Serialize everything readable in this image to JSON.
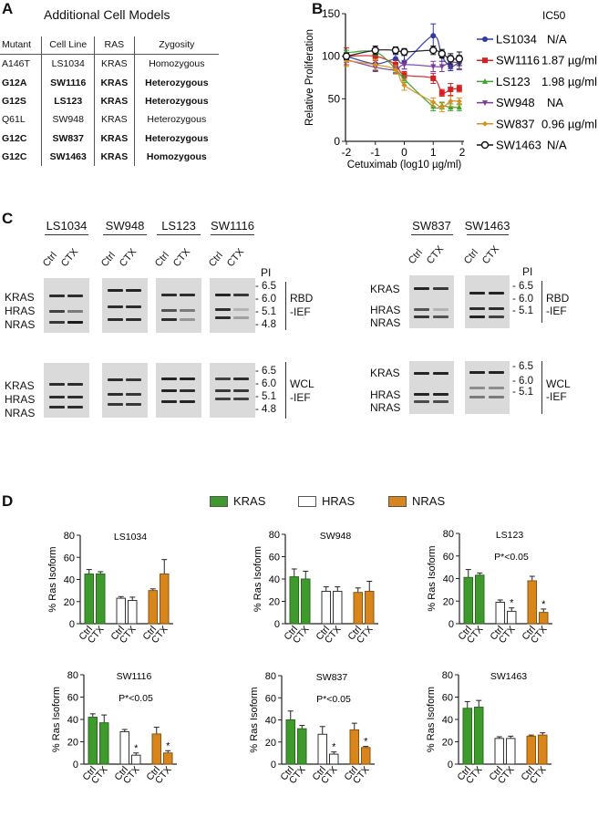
{
  "panels": {
    "a": {
      "letter": "A",
      "title": "Additional Cell Models",
      "headers": [
        "Mutant",
        "Cell Line",
        "RAS",
        "Zygosity"
      ],
      "rows": [
        {
          "mutant": "A146T",
          "cell_line": "LS1034",
          "ras": "KRAS",
          "zygosity": "Homozygous",
          "bold": false
        },
        {
          "mutant": "G12A",
          "cell_line": "SW1116",
          "ras": "KRAS",
          "zygosity": "Heterozygous",
          "bold": true
        },
        {
          "mutant": "G12S",
          "cell_line": "LS123",
          "ras": "KRAS",
          "zygosity": "Heterozygous",
          "bold": true
        },
        {
          "mutant": "Q61L",
          "cell_line": "SW948",
          "ras": "KRAS",
          "zygosity": "Heterozygous",
          "bold": false
        },
        {
          "mutant": "G12C",
          "cell_line": "SW837",
          "ras": "KRAS",
          "zygosity": "Heterozygous",
          "bold": true
        },
        {
          "mutant": "G12C",
          "cell_line": "SW1463",
          "ras": "KRAS",
          "zygosity": "Homozygous",
          "bold": true
        }
      ]
    },
    "b": {
      "letter": "B",
      "legend_title": "IC50"
    },
    "c": {
      "letter": "C",
      "lane_labels": [
        "Ctrl",
        "CTX"
      ],
      "row_labels": [
        "KRAS",
        "HRAS",
        "NRAS"
      ],
      "pi_title": "PI",
      "pi_left": [
        "6.5",
        "6.0",
        "5.1",
        "4.8"
      ],
      "pi_right_top": [
        "6.5",
        "6.0",
        "5.1"
      ],
      "pi_right_bottom": [
        "6.5",
        "6.0",
        "5.1"
      ],
      "rbd_label": [
        "RBD",
        "-IEF"
      ],
      "wcl_label": [
        "WCL",
        "-IEF"
      ],
      "left_cell_lines": [
        "LS1034",
        "SW948",
        "LS123",
        "SW1116"
      ],
      "right_cell_lines": [
        "SW837",
        "SW1463"
      ]
    },
    "d": {
      "letter": "D",
      "legend": [
        {
          "label": "KRAS",
          "color": "#3f9a2e"
        },
        {
          "label": "HRAS",
          "color": "#ffffff"
        },
        {
          "label": "NRAS",
          "color": "#d8861c"
        }
      ]
    }
  },
  "chart_data": [
    {
      "type": "line",
      "title": "",
      "xlabel": "Cetuximab (log10 µg/ml)",
      "ylabel": "Relative Proliferation",
      "xlim": [
        -2,
        2
      ],
      "ylim": [
        0,
        150
      ],
      "xticks": [
        -2,
        -1,
        0,
        1,
        2
      ],
      "yticks": [
        0,
        50,
        100,
        150
      ],
      "x": [
        -2,
        -1,
        -0.3,
        0,
        1,
        1.3,
        1.6,
        1.9
      ],
      "legend_title": "IC50",
      "series": [
        {
          "name": "LS1034",
          "ic50": "N/A",
          "color": "#2e3a9e",
          "marker": "circle",
          "values": [
            100,
            91,
            97,
            93,
            124,
            100,
            88,
            93
          ],
          "errors": [
            3,
            8,
            5,
            8,
            14,
            6,
            5,
            8
          ]
        },
        {
          "name": "SW1116",
          "ic50": "1.87 µg/ml",
          "color": "#d42020",
          "marker": "square",
          "values": [
            100,
            100,
            90,
            78,
            74,
            57,
            61,
            62
          ],
          "errors": [
            10,
            5,
            5,
            4,
            6,
            4,
            7,
            4
          ]
        },
        {
          "name": "LS123",
          "ic50": "1.98 µg/ml",
          "color": "#3fa02e",
          "marker": "triangle-up",
          "values": [
            104,
            105,
            85,
            73,
            41,
            42,
            40,
            40
          ],
          "errors": [
            3,
            4,
            4,
            4,
            5,
            4,
            4,
            4
          ]
        },
        {
          "name": "SW948",
          "ic50": "NA",
          "color": "#7a3a9e",
          "marker": "triangle-down",
          "values": [
            96,
            87,
            84,
            90,
            88,
            88,
            93,
            92
          ],
          "errors": [
            3,
            5,
            4,
            5,
            6,
            6,
            8,
            8
          ]
        },
        {
          "name": "SW837",
          "ic50": "0.96 µg/ml",
          "color": "#d8901c",
          "marker": "diamond",
          "values": [
            95,
            90,
            84,
            66,
            46,
            40,
            47,
            47
          ],
          "errors": [
            7,
            6,
            5,
            6,
            5,
            5,
            6,
            4
          ]
        },
        {
          "name": "SW1463",
          "ic50": "N/A",
          "color": "#111111",
          "marker": "open-circle",
          "values": [
            100,
            107,
            107,
            105,
            107,
            103,
            97,
            97
          ],
          "errors": [
            4,
            5,
            4,
            4,
            5,
            5,
            6,
            8
          ]
        }
      ]
    },
    {
      "type": "bar",
      "title": "LS1034",
      "annotation": "",
      "ylabel": "% Ras Isoform",
      "ylim": [
        0,
        80
      ],
      "yticks": [
        0,
        20,
        40,
        60,
        80
      ],
      "categories": [
        "Ctrl",
        "CTX",
        "Ctrl",
        "CTX",
        "Ctrl",
        "CTX"
      ],
      "series": [
        {
          "name": "KRAS",
          "values": [
            45,
            45
          ],
          "errors": [
            4,
            2
          ]
        },
        {
          "name": "HRAS",
          "values": [
            23,
            21
          ],
          "errors": [
            1.5,
            3
          ]
        },
        {
          "name": "NRAS",
          "values": [
            30,
            45
          ],
          "errors": [
            1.5,
            13
          ]
        }
      ],
      "significant": []
    },
    {
      "type": "bar",
      "title": "SW948",
      "annotation": "",
      "ylabel": "% Ras Isoform",
      "ylim": [
        0,
        80
      ],
      "yticks": [
        0,
        20,
        40,
        60,
        80
      ],
      "categories": [
        "Ctrl",
        "CTX",
        "Ctrl",
        "CTX",
        "Ctrl",
        "CTX"
      ],
      "series": [
        {
          "name": "KRAS",
          "values": [
            42,
            40
          ],
          "errors": [
            7,
            7
          ]
        },
        {
          "name": "HRAS",
          "values": [
            29,
            29
          ],
          "errors": [
            4,
            4
          ]
        },
        {
          "name": "NRAS",
          "values": [
            28,
            29
          ],
          "errors": [
            4,
            9
          ]
        }
      ],
      "significant": []
    },
    {
      "type": "bar",
      "title": "LS123",
      "annotation": "P*<0.05",
      "ylabel": "% Ras Isoform",
      "ylim": [
        0,
        80
      ],
      "yticks": [
        0,
        20,
        40,
        60,
        80
      ],
      "categories": [
        "Ctrl",
        "CTX",
        "Ctrl",
        "CTX",
        "Ctrl",
        "CTX"
      ],
      "series": [
        {
          "name": "KRAS",
          "values": [
            41,
            43
          ],
          "errors": [
            7,
            2
          ]
        },
        {
          "name": "HRAS",
          "values": [
            19,
            11
          ],
          "errors": [
            2,
            3
          ]
        },
        {
          "name": "NRAS",
          "values": [
            38,
            10
          ],
          "errors": [
            4,
            3
          ]
        }
      ],
      "significant": [
        "HRAS CTX",
        "NRAS CTX"
      ]
    },
    {
      "type": "bar",
      "title": "SW1116",
      "annotation": "P*<0.05",
      "ylabel": "% Ras Isoform",
      "ylim": [
        0,
        80
      ],
      "yticks": [
        0,
        20,
        40,
        60,
        80
      ],
      "categories": [
        "Ctrl",
        "CTX",
        "Ctrl",
        "CTX",
        "Ctrl",
        "CTX"
      ],
      "series": [
        {
          "name": "KRAS",
          "values": [
            42,
            37
          ],
          "errors": [
            3,
            7
          ]
        },
        {
          "name": "HRAS",
          "values": [
            29,
            8
          ],
          "errors": [
            2,
            2
          ]
        },
        {
          "name": "NRAS",
          "values": [
            27,
            10
          ],
          "errors": [
            6,
            2
          ]
        }
      ],
      "significant": [
        "HRAS CTX",
        "NRAS CTX"
      ]
    },
    {
      "type": "bar",
      "title": "SW837",
      "annotation": "P*<0.05",
      "ylabel": "% Ras Isoform",
      "ylim": [
        0,
        80
      ],
      "yticks": [
        0,
        20,
        40,
        60,
        80
      ],
      "categories": [
        "Ctrl",
        "CTX",
        "Ctrl",
        "CTX",
        "Ctrl",
        "CTX"
      ],
      "series": [
        {
          "name": "KRAS",
          "values": [
            40,
            32
          ],
          "errors": [
            8,
            3
          ]
        },
        {
          "name": "HRAS",
          "values": [
            27,
            9
          ],
          "errors": [
            7,
            2
          ]
        },
        {
          "name": "NRAS",
          "values": [
            31,
            15
          ],
          "errors": [
            6,
            1
          ]
        }
      ],
      "significant": [
        "HRAS CTX",
        "NRAS CTX"
      ]
    },
    {
      "type": "bar",
      "title": "SW1463",
      "annotation": "",
      "ylabel": "% Ras Isoform",
      "ylim": [
        0,
        80
      ],
      "yticks": [
        0,
        20,
        40,
        60,
        80
      ],
      "categories": [
        "Ctrl",
        "CTX",
        "Ctrl",
        "CTX",
        "Ctrl",
        "CTX"
      ],
      "series": [
        {
          "name": "KRAS",
          "values": [
            50,
            51
          ],
          "errors": [
            6,
            6
          ]
        },
        {
          "name": "HRAS",
          "values": [
            23,
            23
          ],
          "errors": [
            1.5,
            2
          ]
        },
        {
          "name": "NRAS",
          "values": [
            25,
            26
          ],
          "errors": [
            1,
            2
          ]
        }
      ],
      "significant": []
    }
  ]
}
